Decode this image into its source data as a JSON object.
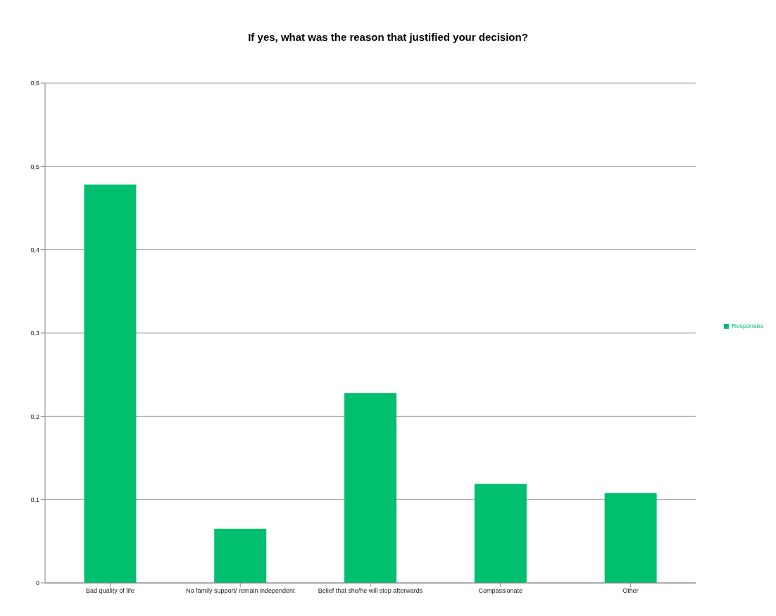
{
  "chart_data": {
    "type": "bar",
    "title": "If yes, what was the reason that justified your decision?",
    "categories": [
      "Bad quality of life",
      "No family support/ remain independent",
      "Belief that she/he will stop afterwards",
      "Compassionate",
      "Other"
    ],
    "series": [
      {
        "name": "Responses",
        "color": "#00bf6f",
        "values": [
          0.478,
          0.065,
          0.228,
          0.119,
          0.108
        ]
      }
    ],
    "ylim": [
      0,
      0.6
    ],
    "yticks": [
      0,
      {
        "value": 0.1,
        "label": "0,1"
      },
      {
        "value": 0.2,
        "label": "0,2"
      },
      {
        "value": 0.3,
        "label": "0,3"
      },
      {
        "value": 0.4,
        "label": "0,4"
      },
      {
        "value": 0.5,
        "label": "0,5"
      },
      {
        "value": 0.6,
        "label": "0,6"
      }
    ],
    "grid": "y",
    "legend": "right"
  }
}
